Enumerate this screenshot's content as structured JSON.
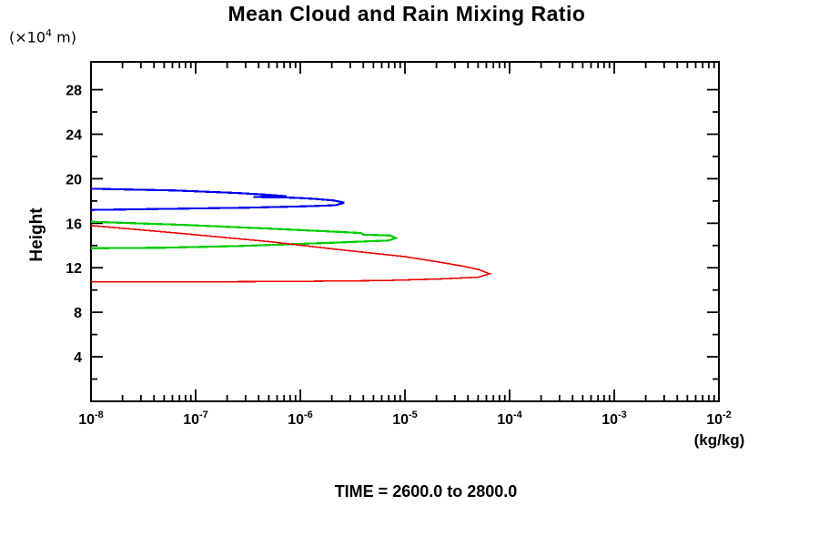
{
  "chart_data": {
    "type": "line",
    "title": "Mean Cloud and Rain Mixing Ratio",
    "xlabel": "(kg/kg)",
    "ylabel": "Height",
    "y_axis_unit": {
      "pre": "(×10",
      "exp": "4",
      "post": " m)"
    },
    "annotation": "TIME = 2600.0 to 2800.0",
    "x_scale": "log",
    "xlim": [
      1e-08,
      0.01
    ],
    "x_tick_exponents": [
      -8,
      -7,
      -6,
      -5,
      -4,
      -3,
      -2
    ],
    "ylim": [
      0,
      30.5
    ],
    "y_major_ticks": [
      4,
      8,
      12,
      16,
      20,
      24,
      28
    ],
    "y_minor_ticks": [
      2,
      6,
      10,
      14,
      18,
      22,
      26
    ],
    "grid": false,
    "legend": "none",
    "series": [
      {
        "name": "blue-contour",
        "color": "#0000EE",
        "width": 2.2,
        "points": [
          [
            -8.0,
            19.1
          ],
          [
            -7.2,
            18.95
          ],
          [
            -6.6,
            18.72
          ],
          [
            -6.3,
            18.55
          ],
          [
            -6.13,
            18.42
          ],
          [
            -6.45,
            18.36
          ],
          [
            -6.08,
            18.3
          ],
          [
            -5.88,
            18.2
          ],
          [
            -5.68,
            18.05
          ],
          [
            -5.58,
            17.85
          ],
          [
            -5.66,
            17.62
          ],
          [
            -5.95,
            17.52
          ],
          [
            -6.5,
            17.4
          ],
          [
            -7.2,
            17.3
          ],
          [
            -8.0,
            17.2
          ]
        ]
      },
      {
        "name": "green-contour",
        "color": "#00CC00",
        "width": 2.2,
        "points": [
          [
            -8.0,
            16.13
          ],
          [
            -7.1,
            15.85
          ],
          [
            -6.3,
            15.52
          ],
          [
            -5.62,
            15.22
          ],
          [
            -5.42,
            15.12
          ],
          [
            -5.4,
            14.98
          ],
          [
            -5.14,
            14.9
          ],
          [
            -5.09,
            14.66
          ],
          [
            -5.16,
            14.45
          ],
          [
            -5.62,
            14.28
          ],
          [
            -5.95,
            14.16
          ],
          [
            -6.6,
            13.95
          ],
          [
            -7.3,
            13.8
          ],
          [
            -8.0,
            13.75
          ]
        ]
      },
      {
        "name": "red-contour",
        "color": "#EE0000",
        "width": 1.6,
        "points": [
          [
            -8.0,
            15.8
          ],
          [
            -7.1,
            15.05
          ],
          [
            -6.3,
            14.35
          ],
          [
            -5.6,
            13.6
          ],
          [
            -5.0,
            13.0
          ],
          [
            -4.68,
            12.52
          ],
          [
            -4.45,
            12.15
          ],
          [
            -4.3,
            11.85
          ],
          [
            -4.19,
            11.46
          ],
          [
            -4.3,
            11.15
          ],
          [
            -4.65,
            11.0
          ],
          [
            -5.2,
            10.85
          ],
          [
            -6.0,
            10.78
          ],
          [
            -7.0,
            10.73
          ],
          [
            -8.0,
            10.72
          ]
        ]
      }
    ]
  }
}
